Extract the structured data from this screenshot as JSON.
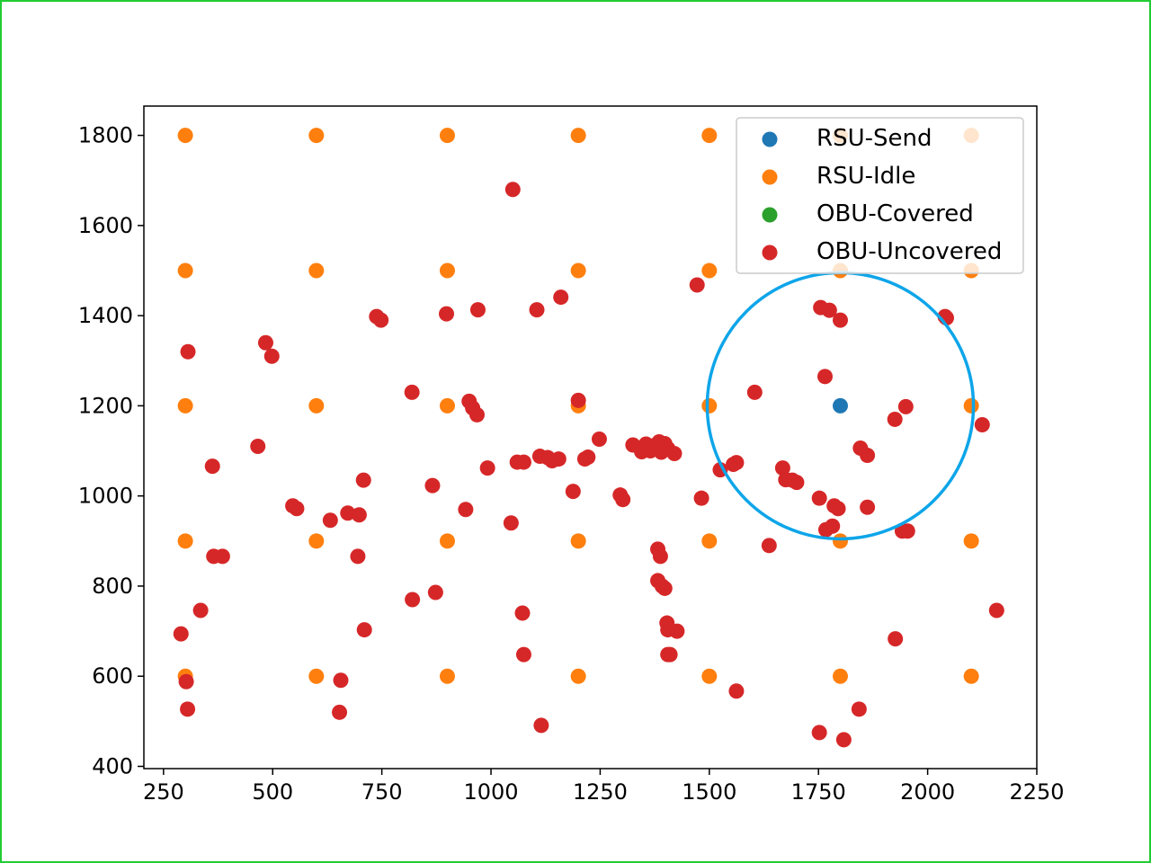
{
  "chart_data": {
    "type": "scatter",
    "title": "",
    "xlabel": "",
    "ylabel": "",
    "xlim": [
      205,
      2250
    ],
    "ylim": [
      395,
      1865
    ],
    "x_ticks": [
      250,
      500,
      750,
      1000,
      1250,
      1500,
      1750,
      2000,
      2250
    ],
    "y_ticks": [
      400,
      600,
      800,
      1000,
      1200,
      1400,
      1600,
      1800
    ],
    "grid": false,
    "legend_position": "top-right",
    "colors": {
      "frame_border": "#22cc33",
      "coverage_circle": "#0ea5e9"
    },
    "series": [
      {
        "name": "RSU-Send",
        "color": "#1f77b4",
        "points": [
          [
            1800,
            1200
          ]
        ]
      },
      {
        "name": "RSU-Idle",
        "color": "#ff7f0e",
        "points": [
          [
            300,
            1800
          ],
          [
            600,
            1800
          ],
          [
            900,
            1800
          ],
          [
            1200,
            1800
          ],
          [
            1500,
            1800
          ],
          [
            1800,
            1800
          ],
          [
            2100,
            1800
          ],
          [
            300,
            1500
          ],
          [
            600,
            1500
          ],
          [
            900,
            1500
          ],
          [
            1200,
            1500
          ],
          [
            1500,
            1500
          ],
          [
            1800,
            1500
          ],
          [
            2100,
            1500
          ],
          [
            300,
            1200
          ],
          [
            600,
            1200
          ],
          [
            900,
            1200
          ],
          [
            1200,
            1200
          ],
          [
            1500,
            1200
          ],
          [
            2100,
            1200
          ],
          [
            300,
            900
          ],
          [
            600,
            900
          ],
          [
            900,
            900
          ],
          [
            1200,
            900
          ],
          [
            1500,
            900
          ],
          [
            1800,
            900
          ],
          [
            2100,
            900
          ],
          [
            300,
            600
          ],
          [
            600,
            600
          ],
          [
            900,
            600
          ],
          [
            1200,
            600
          ],
          [
            1500,
            600
          ],
          [
            1800,
            600
          ],
          [
            2100,
            600
          ]
        ]
      },
      {
        "name": "OBU-Covered",
        "color": "#2ca02c",
        "points": []
      },
      {
        "name": "OBU-Uncovered",
        "color": "#d62728",
        "points": [
          [
            1050,
            1680
          ],
          [
            1105,
            1413
          ],
          [
            1160,
            1441
          ],
          [
            1472,
            1468
          ],
          [
            970,
            1413
          ],
          [
            898,
            1404
          ],
          [
            738,
            1398
          ],
          [
            748,
            1390
          ],
          [
            484,
            1340
          ],
          [
            498,
            1310
          ],
          [
            306,
            1320
          ],
          [
            819,
            1230
          ],
          [
            950,
            1210
          ],
          [
            958,
            1195
          ],
          [
            968,
            1180
          ],
          [
            1200,
            1212
          ],
          [
            1604,
            1230
          ],
          [
            1755,
            1418
          ],
          [
            1775,
            1412
          ],
          [
            1800,
            1390
          ],
          [
            2040,
            1398
          ],
          [
            2043,
            1395
          ],
          [
            1765,
            1265
          ],
          [
            1950,
            1198
          ],
          [
            1925,
            1170
          ],
          [
            2125,
            1158
          ],
          [
            466,
            1110
          ],
          [
            362,
            1066
          ],
          [
            708,
            1035
          ],
          [
            546,
            978
          ],
          [
            555,
            972
          ],
          [
            632,
            946
          ],
          [
            672,
            962
          ],
          [
            698,
            958
          ],
          [
            866,
            1023
          ],
          [
            942,
            970
          ],
          [
            992,
            1062
          ],
          [
            1046,
            940
          ],
          [
            1060,
            1075
          ],
          [
            1075,
            1075
          ],
          [
            1112,
            1088
          ],
          [
            1130,
            1085
          ],
          [
            1140,
            1078
          ],
          [
            1155,
            1082
          ],
          [
            1188,
            1010
          ],
          [
            1215,
            1082
          ],
          [
            1222,
            1086
          ],
          [
            1248,
            1126
          ],
          [
            1296,
            1002
          ],
          [
            1302,
            992
          ],
          [
            1325,
            1113
          ],
          [
            1345,
            1098
          ],
          [
            1355,
            1115
          ],
          [
            1365,
            1100
          ],
          [
            1375,
            1112
          ],
          [
            1385,
            1120
          ],
          [
            1390,
            1097
          ],
          [
            1398,
            1116
          ],
          [
            1405,
            1105
          ],
          [
            1420,
            1094
          ],
          [
            1482,
            995
          ],
          [
            1525,
            1058
          ],
          [
            1555,
            1070
          ],
          [
            1562,
            1074
          ],
          [
            1637,
            890
          ],
          [
            1668,
            1062
          ],
          [
            1675,
            1036
          ],
          [
            1690,
            1035
          ],
          [
            1700,
            1030
          ],
          [
            1752,
            995
          ],
          [
            1767,
            925
          ],
          [
            1782,
            933
          ],
          [
            1786,
            978
          ],
          [
            1795,
            972
          ],
          [
            1846,
            1106
          ],
          [
            1862,
            1090
          ],
          [
            1862,
            975
          ],
          [
            1942,
            922
          ],
          [
            1954,
            922
          ],
          [
            365,
            866
          ],
          [
            385,
            866
          ],
          [
            695,
            866
          ],
          [
            335,
            746
          ],
          [
            290,
            694
          ],
          [
            302,
            588
          ],
          [
            305,
            527
          ],
          [
            653,
            520
          ],
          [
            656,
            591
          ],
          [
            710,
            703
          ],
          [
            820,
            770
          ],
          [
            873,
            786
          ],
          [
            1072,
            740
          ],
          [
            1075,
            648
          ],
          [
            1115,
            491
          ],
          [
            1382,
            882
          ],
          [
            1388,
            866
          ],
          [
            1382,
            812
          ],
          [
            1392,
            800
          ],
          [
            1398,
            795
          ],
          [
            1403,
            718
          ],
          [
            1405,
            703
          ],
          [
            1426,
            700
          ],
          [
            1405,
            648
          ],
          [
            1410,
            648
          ],
          [
            1562,
            567
          ],
          [
            1752,
            475
          ],
          [
            1808,
            459
          ],
          [
            1843,
            527
          ],
          [
            1926,
            683
          ],
          [
            2158,
            746
          ]
        ]
      }
    ]
  }
}
